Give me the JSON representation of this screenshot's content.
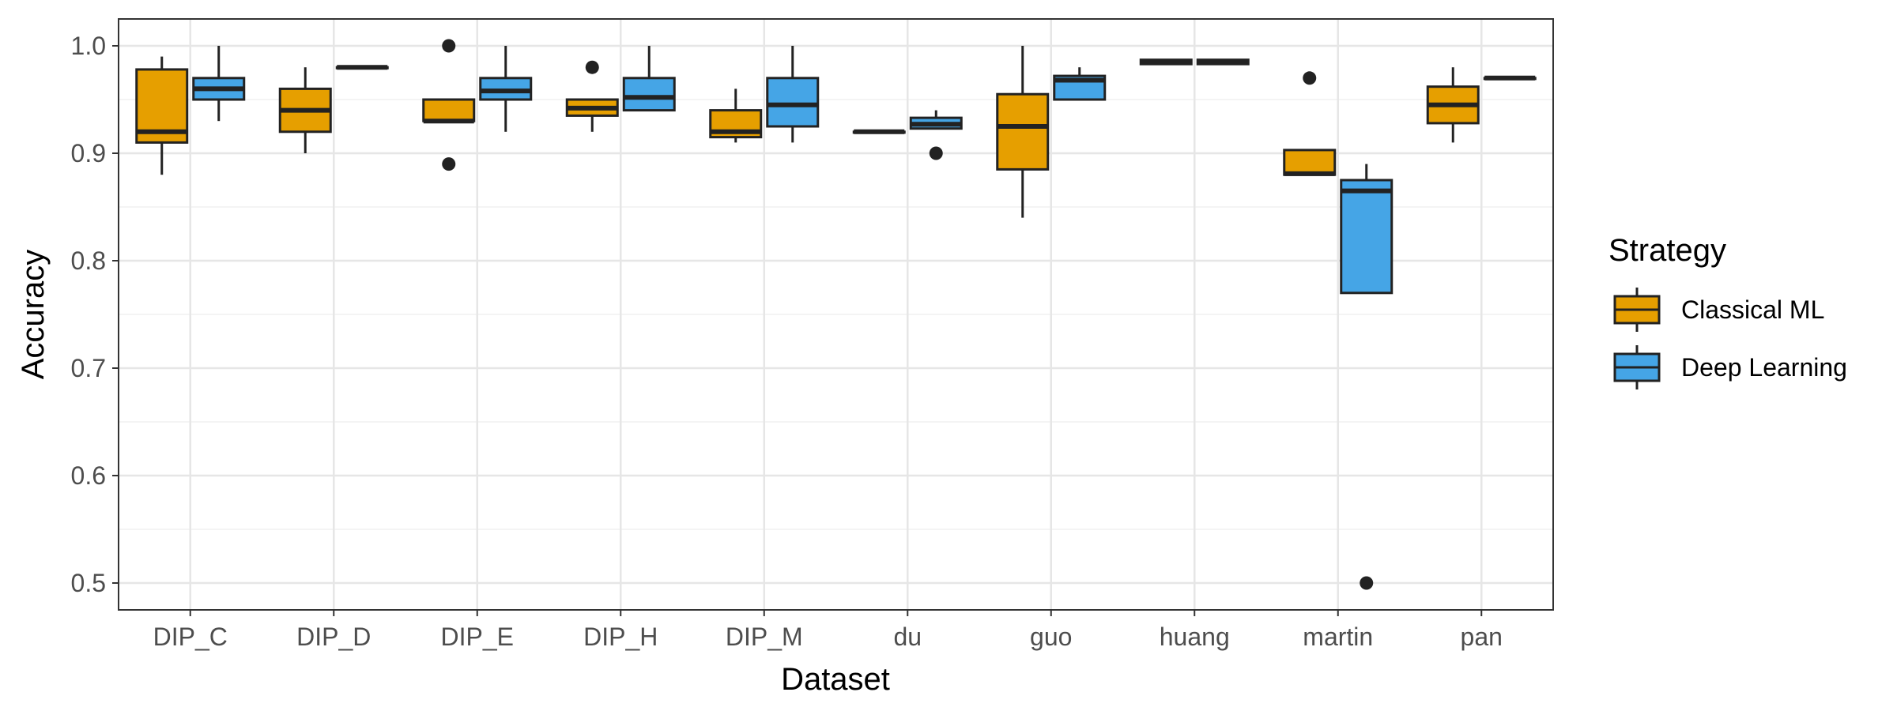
{
  "chart_data": {
    "type": "box",
    "xlabel": "Dataset",
    "ylabel": "Accuracy",
    "ylim": [
      0.475,
      1.025
    ],
    "yticks": [
      "0.5",
      "0.6",
      "0.7",
      "0.8",
      "0.9",
      "1.0"
    ],
    "categories": [
      "DIP_C",
      "DIP_D",
      "DIP_E",
      "DIP_H",
      "DIP_M",
      "du",
      "guo",
      "huang",
      "martin",
      "pan"
    ],
    "grid": true,
    "legend": {
      "title": "Strategy",
      "position": "right"
    },
    "series": [
      {
        "name": "Classical ML",
        "color": "#E69F00",
        "boxes": [
          {
            "whisker_low": 0.88,
            "q1": 0.91,
            "median": 0.92,
            "q3": 0.978,
            "whisker_high": 0.99,
            "outliers": []
          },
          {
            "whisker_low": 0.9,
            "q1": 0.92,
            "median": 0.94,
            "q3": 0.96,
            "whisker_high": 0.98,
            "outliers": []
          },
          {
            "whisker_low": 0.93,
            "q1": 0.93,
            "median": 0.93,
            "q3": 0.95,
            "whisker_high": 0.95,
            "outliers": [
              1.0,
              0.89
            ]
          },
          {
            "whisker_low": 0.92,
            "q1": 0.935,
            "median": 0.942,
            "q3": 0.95,
            "whisker_high": 0.95,
            "outliers": [
              0.98
            ]
          },
          {
            "whisker_low": 0.91,
            "q1": 0.915,
            "median": 0.92,
            "q3": 0.94,
            "whisker_high": 0.96,
            "outliers": []
          },
          {
            "whisker_low": 0.92,
            "q1": 0.92,
            "median": 0.92,
            "q3": 0.92,
            "whisker_high": 0.92,
            "outliers": []
          },
          {
            "whisker_low": 0.84,
            "q1": 0.885,
            "median": 0.925,
            "q3": 0.955,
            "whisker_high": 1.0,
            "outliers": []
          },
          {
            "whisker_low": 0.983,
            "q1": 0.983,
            "median": 0.985,
            "q3": 0.987,
            "whisker_high": 0.987,
            "outliers": []
          },
          {
            "whisker_low": 0.88,
            "q1": 0.88,
            "median": 0.881,
            "q3": 0.903,
            "whisker_high": 0.903,
            "outliers": [
              0.97
            ]
          },
          {
            "whisker_low": 0.91,
            "q1": 0.928,
            "median": 0.945,
            "q3": 0.962,
            "whisker_high": 0.98,
            "outliers": []
          }
        ]
      },
      {
        "name": "Deep Learning",
        "color": "#45A5E6",
        "boxes": [
          {
            "whisker_low": 0.93,
            "q1": 0.95,
            "median": 0.96,
            "q3": 0.97,
            "whisker_high": 1.0,
            "outliers": []
          },
          {
            "whisker_low": 0.98,
            "q1": 0.98,
            "median": 0.98,
            "q3": 0.98,
            "whisker_high": 0.98,
            "outliers": []
          },
          {
            "whisker_low": 0.92,
            "q1": 0.95,
            "median": 0.958,
            "q3": 0.97,
            "whisker_high": 1.0,
            "outliers": []
          },
          {
            "whisker_low": 0.94,
            "q1": 0.94,
            "median": 0.952,
            "q3": 0.97,
            "whisker_high": 1.0,
            "outliers": []
          },
          {
            "whisker_low": 0.91,
            "q1": 0.925,
            "median": 0.945,
            "q3": 0.97,
            "whisker_high": 1.0,
            "outliers": []
          },
          {
            "whisker_low": 0.923,
            "q1": 0.923,
            "median": 0.927,
            "q3": 0.933,
            "whisker_high": 0.94,
            "outliers": [
              0.9
            ]
          },
          {
            "whisker_low": 0.95,
            "q1": 0.95,
            "median": 0.968,
            "q3": 0.972,
            "whisker_high": 0.98,
            "outliers": []
          },
          {
            "whisker_low": 0.983,
            "q1": 0.983,
            "median": 0.985,
            "q3": 0.987,
            "whisker_high": 0.987,
            "outliers": []
          },
          {
            "whisker_low": 0.77,
            "q1": 0.77,
            "median": 0.865,
            "q3": 0.875,
            "whisker_high": 0.89,
            "outliers": [
              0.5
            ]
          },
          {
            "whisker_low": 0.97,
            "q1": 0.97,
            "median": 0.97,
            "q3": 0.97,
            "whisker_high": 0.97,
            "outliers": []
          }
        ]
      }
    ]
  }
}
